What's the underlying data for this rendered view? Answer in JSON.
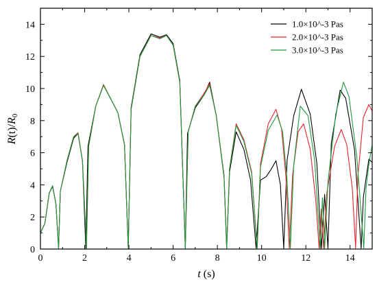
{
  "chart_data": {
    "type": "line",
    "xlabel": "t (s)",
    "ylabel": "R(t)/R0",
    "xlim": [
      0,
      15
    ],
    "ylim": [
      0,
      15
    ],
    "xticks": [
      0,
      2,
      4,
      6,
      8,
      10,
      12,
      14
    ],
    "yticks": [
      0,
      2,
      4,
      6,
      8,
      10,
      12,
      14
    ],
    "legend_position": "top-right",
    "series": [
      {
        "name": "1.0×10^-3 Pas",
        "color": "#000000",
        "points": [
          [
            0,
            1.0
          ],
          [
            0.2,
            1.6
          ],
          [
            0.4,
            3.5
          ],
          [
            0.55,
            3.9
          ],
          [
            0.7,
            2.8
          ],
          [
            0.82,
            0.05
          ],
          [
            0.9,
            3.6
          ],
          [
            1.2,
            5.4
          ],
          [
            1.5,
            6.9
          ],
          [
            1.7,
            7.2
          ],
          [
            1.9,
            5.5
          ],
          [
            2.05,
            0.05
          ],
          [
            2.15,
            6.4
          ],
          [
            2.5,
            8.9
          ],
          [
            2.85,
            10.2
          ],
          [
            3.2,
            9.3
          ],
          [
            3.5,
            8.5
          ],
          [
            3.8,
            6.5
          ],
          [
            3.97,
            0.05
          ],
          [
            4.1,
            8.8
          ],
          [
            4.5,
            12.1
          ],
          [
            5.0,
            13.4
          ],
          [
            5.4,
            13.2
          ],
          [
            5.7,
            13.35
          ],
          [
            6.0,
            12.8
          ],
          [
            6.3,
            10.5
          ],
          [
            6.55,
            0.05
          ],
          [
            6.65,
            7.2
          ],
          [
            7.0,
            8.8
          ],
          [
            7.4,
            9.6
          ],
          [
            7.65,
            10.4
          ],
          [
            7.95,
            8.3
          ],
          [
            8.3,
            4.5
          ],
          [
            8.42,
            0.05
          ],
          [
            8.55,
            4.8
          ],
          [
            8.85,
            7.3
          ],
          [
            9.2,
            6.2
          ],
          [
            9.5,
            4.3
          ],
          [
            9.75,
            0.05
          ],
          [
            9.95,
            4.3
          ],
          [
            10.2,
            4.5
          ],
          [
            10.4,
            4.9
          ],
          [
            10.65,
            5.5
          ],
          [
            10.85,
            4.0
          ],
          [
            11.0,
            0.05
          ],
          [
            11.15,
            5.5
          ],
          [
            11.45,
            8.3
          ],
          [
            11.8,
            9.95
          ],
          [
            12.2,
            8.4
          ],
          [
            12.5,
            5.3
          ],
          [
            12.7,
            0.05
          ],
          [
            12.85,
            3.4
          ],
          [
            13.0,
            0.05
          ],
          [
            13.15,
            6.6
          ],
          [
            13.55,
            9.9
          ],
          [
            13.8,
            9.4
          ],
          [
            14.2,
            6.2
          ],
          [
            14.5,
            0.05
          ],
          [
            14.6,
            3.2
          ],
          [
            14.7,
            4.2
          ],
          [
            14.85,
            5.6
          ],
          [
            15.0,
            5.4
          ]
        ]
      },
      {
        "name": "2.0×10^-3 Pas",
        "color": "#e8202a",
        "points": [
          [
            0,
            1.0
          ],
          [
            0.2,
            1.6
          ],
          [
            0.4,
            3.5
          ],
          [
            0.55,
            3.95
          ],
          [
            0.7,
            2.8
          ],
          [
            0.82,
            0.05
          ],
          [
            0.9,
            3.6
          ],
          [
            1.2,
            5.5
          ],
          [
            1.5,
            7.0
          ],
          [
            1.7,
            7.25
          ],
          [
            1.9,
            5.5
          ],
          [
            2.08,
            0.05
          ],
          [
            2.18,
            6.4
          ],
          [
            2.5,
            8.9
          ],
          [
            2.85,
            10.25
          ],
          [
            3.2,
            9.3
          ],
          [
            3.5,
            8.5
          ],
          [
            3.8,
            6.5
          ],
          [
            3.97,
            0.05
          ],
          [
            4.1,
            8.7
          ],
          [
            4.5,
            12.0
          ],
          [
            5.0,
            13.3
          ],
          [
            5.4,
            13.15
          ],
          [
            5.7,
            13.3
          ],
          [
            6.0,
            12.7
          ],
          [
            6.3,
            10.4
          ],
          [
            6.55,
            0.05
          ],
          [
            6.68,
            7.3
          ],
          [
            7.0,
            8.9
          ],
          [
            7.4,
            9.7
          ],
          [
            7.65,
            10.3
          ],
          [
            7.95,
            8.3
          ],
          [
            8.3,
            4.6
          ],
          [
            8.42,
            0.05
          ],
          [
            8.55,
            5.0
          ],
          [
            8.85,
            7.8
          ],
          [
            9.2,
            6.8
          ],
          [
            9.55,
            4.8
          ],
          [
            9.8,
            0.05
          ],
          [
            9.95,
            5.3
          ],
          [
            10.3,
            7.8
          ],
          [
            10.65,
            8.7
          ],
          [
            10.9,
            7.5
          ],
          [
            11.1,
            4.5
          ],
          [
            11.25,
            0.05
          ],
          [
            11.4,
            4.6
          ],
          [
            11.65,
            7.3
          ],
          [
            11.9,
            7.8
          ],
          [
            12.2,
            6.2
          ],
          [
            12.45,
            3.0
          ],
          [
            12.6,
            0.05
          ],
          [
            12.7,
            2.5
          ],
          [
            12.8,
            0.05
          ],
          [
            12.95,
            3.5
          ],
          [
            13.3,
            6.4
          ],
          [
            13.6,
            7.45
          ],
          [
            13.85,
            6.5
          ],
          [
            14.1,
            3.8
          ],
          [
            14.25,
            0.05
          ],
          [
            14.35,
            4.5
          ],
          [
            14.6,
            8.2
          ],
          [
            14.85,
            9.0
          ],
          [
            15.0,
            8.6
          ]
        ]
      },
      {
        "name": "3.0×10^-3 Pas",
        "color": "#1a9a3c",
        "points": [
          [
            0,
            1.0
          ],
          [
            0.2,
            1.6
          ],
          [
            0.4,
            3.5
          ],
          [
            0.55,
            3.95
          ],
          [
            0.7,
            2.8
          ],
          [
            0.82,
            0.05
          ],
          [
            0.9,
            3.6
          ],
          [
            1.2,
            5.5
          ],
          [
            1.5,
            7.0
          ],
          [
            1.7,
            7.2
          ],
          [
            1.9,
            5.5
          ],
          [
            2.08,
            0.05
          ],
          [
            2.18,
            6.4
          ],
          [
            2.5,
            8.9
          ],
          [
            2.85,
            10.2
          ],
          [
            3.2,
            9.3
          ],
          [
            3.5,
            8.5
          ],
          [
            3.8,
            6.5
          ],
          [
            3.97,
            0.05
          ],
          [
            4.1,
            8.7
          ],
          [
            4.5,
            12.0
          ],
          [
            5.0,
            13.3
          ],
          [
            5.4,
            13.1
          ],
          [
            5.7,
            13.3
          ],
          [
            6.0,
            12.7
          ],
          [
            6.3,
            10.4
          ],
          [
            6.55,
            0.05
          ],
          [
            6.68,
            7.3
          ],
          [
            7.0,
            8.9
          ],
          [
            7.4,
            9.6
          ],
          [
            7.65,
            10.2
          ],
          [
            7.95,
            8.3
          ],
          [
            8.3,
            4.6
          ],
          [
            8.42,
            0.05
          ],
          [
            8.55,
            5.0
          ],
          [
            8.85,
            7.7
          ],
          [
            9.2,
            6.7
          ],
          [
            9.55,
            4.7
          ],
          [
            9.8,
            0.05
          ],
          [
            9.95,
            5.1
          ],
          [
            10.3,
            7.4
          ],
          [
            10.7,
            8.35
          ],
          [
            10.95,
            7.3
          ],
          [
            11.15,
            4.3
          ],
          [
            11.3,
            0.05
          ],
          [
            11.45,
            5.2
          ],
          [
            11.75,
            8.9
          ],
          [
            12.1,
            8.3
          ],
          [
            12.4,
            5.5
          ],
          [
            12.65,
            0.05
          ],
          [
            12.75,
            3.2
          ],
          [
            12.85,
            0.05
          ],
          [
            13.0,
            4.2
          ],
          [
            13.35,
            8.4
          ],
          [
            13.7,
            10.4
          ],
          [
            13.95,
            9.5
          ],
          [
            14.3,
            5.8
          ],
          [
            14.62,
            0.05
          ],
          [
            14.72,
            3.8
          ],
          [
            14.85,
            5.3
          ],
          [
            15.0,
            6.5
          ]
        ]
      }
    ]
  }
}
